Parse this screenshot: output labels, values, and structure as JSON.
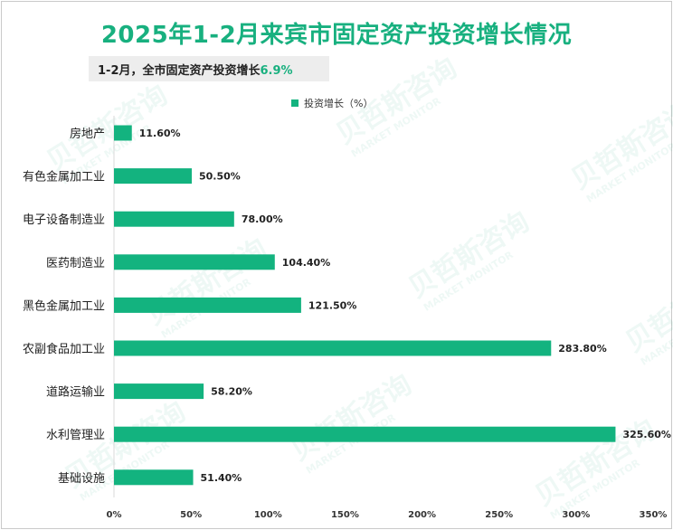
{
  "chart_data": {
    "type": "bar",
    "orientation": "horizontal",
    "title": "2025年1-2月来宾市固定资产投资增长情况",
    "subtitle_prefix": "1-2月，全市固定资产投资增长",
    "subtitle_value": "6.9%",
    "legend": "投资增长（%）",
    "categories": [
      "房地产",
      "有色金属加工业",
      "电子设备制造业",
      "医药制造业",
      "黑色金属加工业",
      "农副食品加工业",
      "道路运输业",
      "水利管理业",
      "基础设施"
    ],
    "values": [
      11.6,
      50.5,
      78.0,
      104.4,
      121.5,
      283.8,
      58.2,
      325.6,
      51.4
    ],
    "value_labels": [
      "11.60%",
      "50.50%",
      "78.00%",
      "104.40%",
      "121.50%",
      "283.80%",
      "58.20%",
      "325.60%",
      "51.40%"
    ],
    "xlim": [
      0,
      350
    ],
    "x_ticks": [
      "0%",
      "50%",
      "100%",
      "150%",
      "200%",
      "250%",
      "300%",
      "350%"
    ],
    "bar_color": "#13b37f",
    "legend_position": "top",
    "grid": false
  },
  "watermark": {
    "cn": "贝哲斯咨询",
    "en": "MARKET MONITOR"
  }
}
